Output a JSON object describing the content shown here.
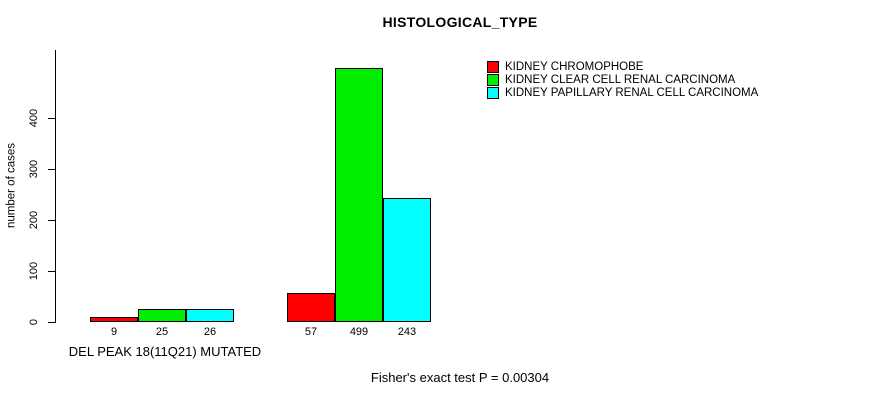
{
  "chart_data": {
    "type": "bar",
    "title": "HISTOLOGICAL_TYPE",
    "ylabel": "number of cases",
    "xlabel": "",
    "yticks": [
      0,
      100,
      200,
      300,
      400
    ],
    "ylim": [
      0,
      500
    ],
    "grid": false,
    "legend_position": "top-right",
    "groups": [
      {
        "label": "DEL PEAK 18(11Q21) MUTATED",
        "values": [
          9,
          25,
          26
        ]
      },
      {
        "label": "",
        "values": [
          57,
          499,
          243
        ]
      }
    ],
    "series": [
      {
        "name": "KIDNEY CHROMOPHOBE",
        "color": "#FF0000"
      },
      {
        "name": "KIDNEY CLEAR CELL RENAL CARCINOMA",
        "color": "#00EE00"
      },
      {
        "name": "KIDNEY PAPILLARY RENAL CELL CARCINOMA",
        "color": "#00FFFF"
      }
    ],
    "annotation": "Fisher's exact test P = 0.00304"
  }
}
